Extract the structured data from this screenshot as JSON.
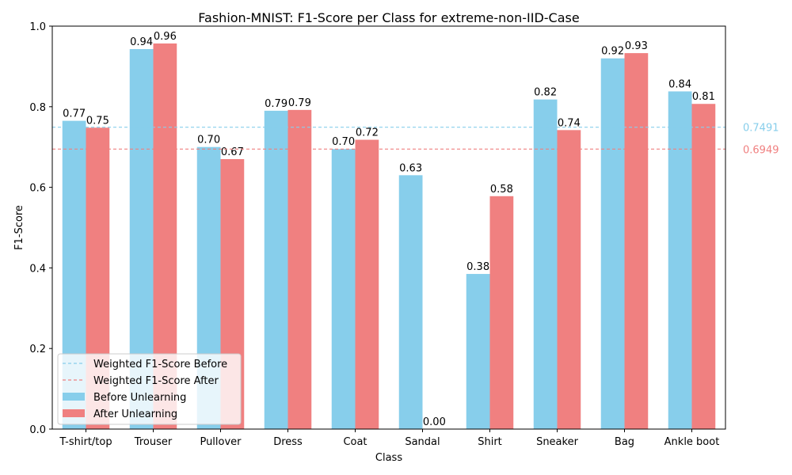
{
  "chart_data": {
    "type": "bar",
    "title": "Fashion-MNIST: F1-Score per Class for extreme-non-IID-Case",
    "xlabel": "Class",
    "ylabel": "F1-Score",
    "ylim": [
      0,
      1.0
    ],
    "yticks": [
      "0.0",
      "0.2",
      "0.4",
      "0.6",
      "0.8",
      "1.0"
    ],
    "ytick_values": [
      0,
      0.2,
      0.4,
      0.6,
      0.8,
      1.0
    ],
    "categories": [
      "T-shirt/top",
      "Trouser",
      "Pullover",
      "Dress",
      "Coat",
      "Sandal",
      "Shirt",
      "Sneaker",
      "Bag",
      "Ankle boot"
    ],
    "series": [
      {
        "name": "Before Unlearning",
        "color": "#87ceeb",
        "values": [
          0.765,
          0.943,
          0.7,
          0.79,
          0.695,
          0.63,
          0.385,
          0.818,
          0.92,
          0.838
        ],
        "labels": [
          "0.77",
          "0.94",
          "0.70",
          "0.79",
          "0.70",
          "0.63",
          "0.38",
          "0.82",
          "0.92",
          "0.84"
        ]
      },
      {
        "name": "After Unlearning",
        "color": "#f08080",
        "values": [
          0.748,
          0.957,
          0.67,
          0.792,
          0.718,
          0.0,
          0.578,
          0.742,
          0.933,
          0.807
        ],
        "labels": [
          "0.75",
          "0.96",
          "0.67",
          "0.79",
          "0.72",
          "0.00",
          "0.58",
          "0.74",
          "0.93",
          "0.81"
        ]
      }
    ],
    "reference_lines": [
      {
        "name": "Weighted F1-Score Before",
        "value": 0.7491,
        "label": "0.7491",
        "color": "#87ceeb",
        "style": "dashed"
      },
      {
        "name": "Weighted F1-Score After",
        "value": 0.6949,
        "label": "0.6949",
        "color": "#f08080",
        "style": "dashed"
      }
    ],
    "legend_placement": "lower-left",
    "grid": false
  }
}
